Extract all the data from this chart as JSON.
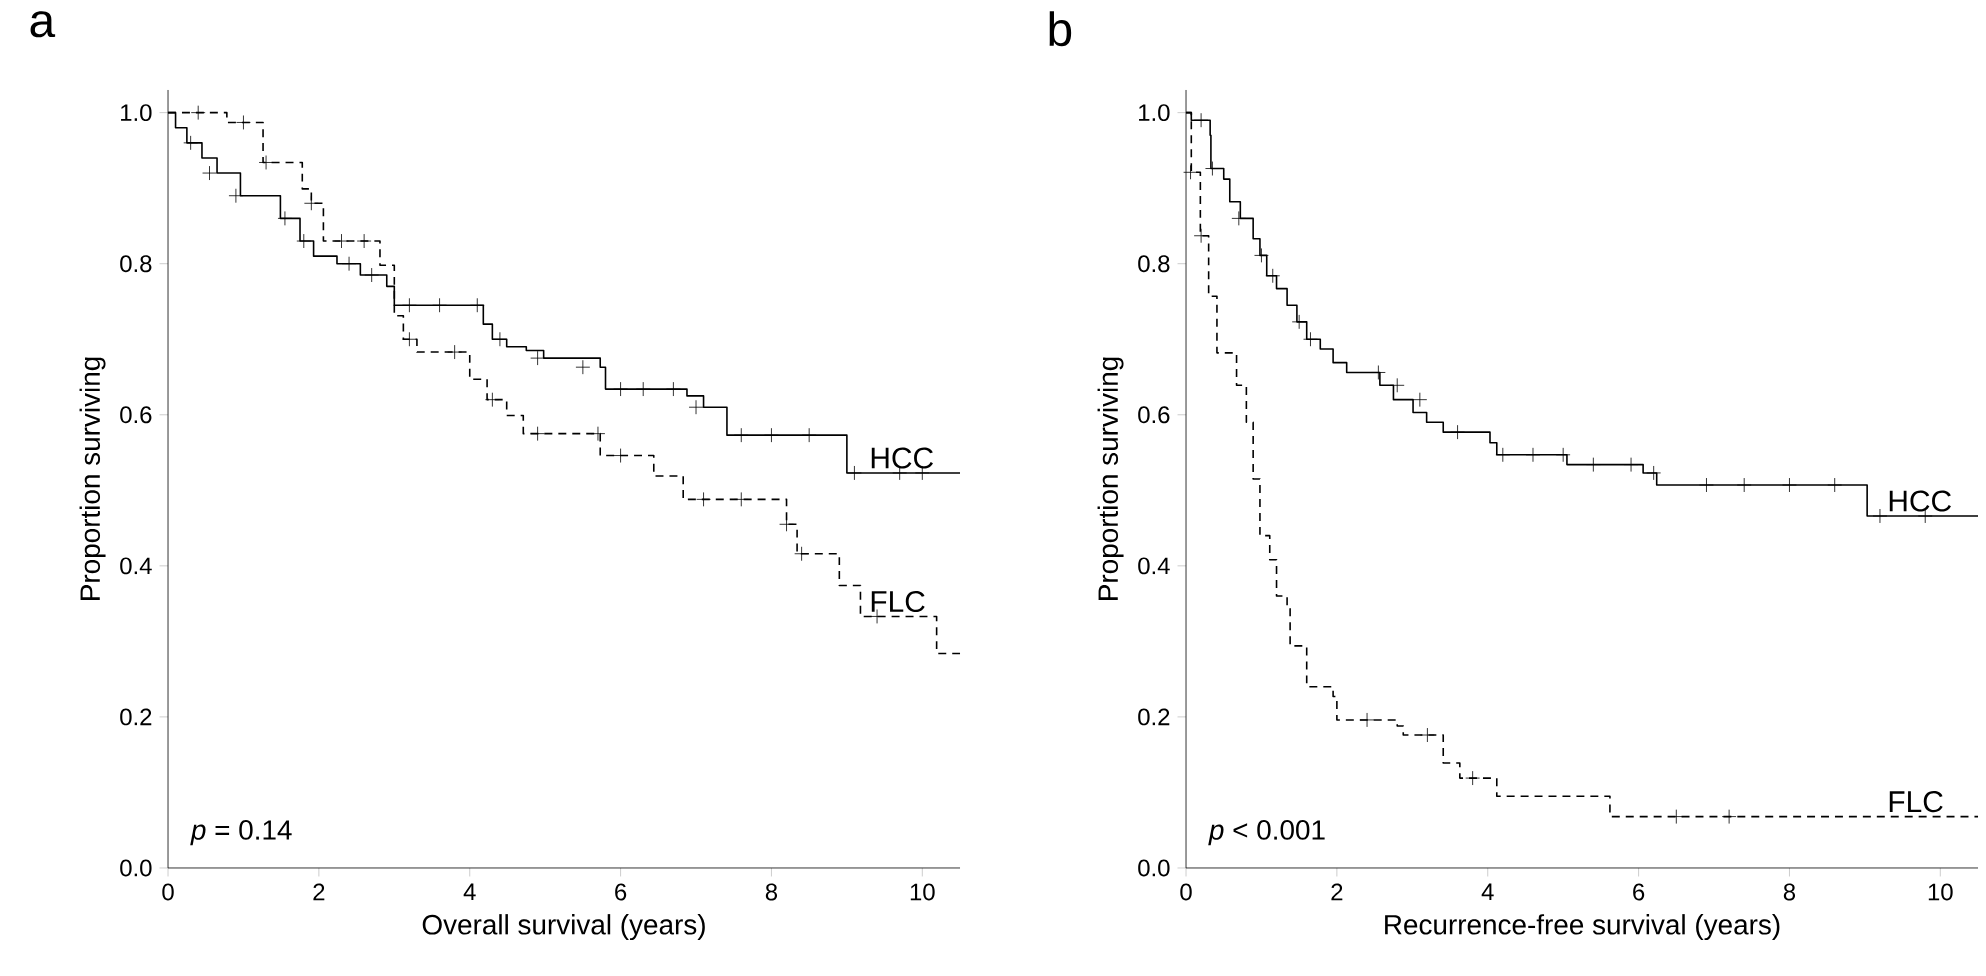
{
  "chart_data": [
    {
      "type": "step",
      "title": "a",
      "xlabel": "Overall survival (years)",
      "ylabel": "Proportion surviving",
      "xlim": [
        0,
        10.5
      ],
      "ylim": [
        0,
        1.03
      ],
      "xticks": [
        0,
        2,
        4,
        6,
        8,
        10
      ],
      "yticks": [
        {
          "value": 0,
          "label": "0.0"
        },
        {
          "value": 0.2,
          "label": "0.2"
        },
        {
          "value": 0.4,
          "label": "0.4"
        },
        {
          "value": 0.6,
          "label": "0.6"
        },
        {
          "value": 0.8,
          "label": "0.8"
        },
        {
          "value": 1.0,
          "label": "1.0"
        }
      ],
      "annotations": [
        "*p* = 0.14"
      ],
      "series": [
        {
          "name": "HCC",
          "color": "#000000",
          "line_style": "solid",
          "x": [
            0,
            0.1,
            0.25,
            0.45,
            0.65,
            0.96,
            1.49,
            1.75,
            1.93,
            2.24,
            2.55,
            2.9,
            3.0,
            4.18,
            4.3,
            4.49,
            4.75,
            4.98,
            5.73,
            5.8,
            6.88,
            7.1,
            7.41,
            9.0,
            10.5
          ],
          "values": [
            1.0,
            0.98,
            0.96,
            0.94,
            0.92,
            0.89,
            0.86,
            0.83,
            0.81,
            0.8,
            0.785,
            0.77,
            0.745,
            0.72,
            0.7,
            0.69,
            0.685,
            0.675,
            0.663,
            0.634,
            0.625,
            0.61,
            0.573,
            0.523,
            0.523
          ]
        },
        {
          "name": "FLC",
          "color": "#000000",
          "line_style": "dashed",
          "x": [
            0,
            0.78,
            1.26,
            1.78,
            1.9,
            2.06,
            2.81,
            3.0,
            3.12,
            3.3,
            4.0,
            4.23,
            4.49,
            4.71,
            5.73,
            6.44,
            6.83,
            8.2,
            8.34,
            8.9,
            9.18,
            10.19,
            10.5
          ],
          "values": [
            1.0,
            0.987,
            0.934,
            0.899,
            0.88,
            0.83,
            0.798,
            0.731,
            0.7,
            0.683,
            0.647,
            0.62,
            0.599,
            0.575,
            0.546,
            0.519,
            0.488,
            0.455,
            0.416,
            0.374,
            0.333,
            0.284,
            0.284
          ]
        },
        {
          "type": "scatter",
          "marker": "cross",
          "color": "#000000",
          "x": [
            0.3,
            0.55,
            0.9,
            1.55,
            1.8,
            2.4,
            2.7,
            3.2,
            3.6,
            4.1,
            4.4,
            4.9,
            5.5,
            6.0,
            6.3,
            6.7,
            7.0,
            7.6,
            8.0,
            8.5,
            9.1,
            9.7,
            10.0
          ],
          "values": [
            0.96,
            0.92,
            0.89,
            0.86,
            0.83,
            0.8,
            0.785,
            0.745,
            0.745,
            0.745,
            0.7,
            0.675,
            0.663,
            0.634,
            0.634,
            0.634,
            0.61,
            0.573,
            0.573,
            0.573,
            0.523,
            0.523,
            0.523
          ]
        },
        {
          "type": "scatter",
          "marker": "cross",
          "color": "#000000",
          "x": [
            0.4,
            1.0,
            1.3,
            1.9,
            2.3,
            2.6,
            3.2,
            3.8,
            4.3,
            4.9,
            5.7,
            6.0,
            7.1,
            7.6,
            8.2,
            8.4,
            9.4
          ],
          "values": [
            1.0,
            0.987,
            0.934,
            0.88,
            0.83,
            0.83,
            0.7,
            0.683,
            0.62,
            0.575,
            0.575,
            0.546,
            0.488,
            0.488,
            0.455,
            0.416,
            0.333
          ]
        }
      ]
    },
    {
      "type": "step",
      "title": "b",
      "xlabel": "Recurrence-free survival (years)",
      "ylabel": "Proportion surviving",
      "xlim": [
        0,
        10.5
      ],
      "ylim": [
        0,
        1.03
      ],
      "xticks": [
        0,
        2,
        4,
        6,
        8,
        10
      ],
      "yticks": [
        {
          "value": 0,
          "label": "0.0"
        },
        {
          "value": 0.2,
          "label": "0.2"
        },
        {
          "value": 0.4,
          "label": "0.4"
        },
        {
          "value": 0.6,
          "label": "0.6"
        },
        {
          "value": 0.8,
          "label": "0.8"
        },
        {
          "value": 1.0,
          "label": "1.0"
        }
      ],
      "annotations": [
        "*p* < 0.001"
      ],
      "series": [
        {
          "name": "HCC",
          "color": "#000000",
          "line_style": "solid",
          "x": [
            0,
            0.07,
            0.32,
            0.33,
            0.5,
            0.58,
            0.72,
            0.89,
            0.98,
            1.07,
            1.2,
            1.34,
            1.47,
            1.6,
            1.78,
            1.95,
            2.13,
            2.57,
            2.75,
            3.01,
            3.19,
            3.41,
            4.03,
            4.12,
            5.05,
            6.06,
            6.24,
            9.03,
            10.5
          ],
          "values": [
            1.0,
            0.99,
            0.97,
            0.926,
            0.912,
            0.882,
            0.86,
            0.833,
            0.811,
            0.784,
            0.767,
            0.745,
            0.723,
            0.7,
            0.687,
            0.669,
            0.656,
            0.639,
            0.62,
            0.603,
            0.59,
            0.577,
            0.563,
            0.547,
            0.534,
            0.523,
            0.507,
            0.466,
            0.466
          ]
        },
        {
          "name": "FLC",
          "color": "#000000",
          "line_style": "dashed",
          "x": [
            0,
            0.07,
            0.19,
            0.3,
            0.41,
            0.67,
            0.8,
            0.89,
            0.98,
            1.11,
            1.2,
            1.34,
            1.38,
            1.6,
            1.95,
            2.0,
            2.8,
            2.88,
            3.41,
            3.63,
            4.12,
            5.62,
            10.5
          ],
          "values": [
            1.0,
            0.921,
            0.837,
            0.757,
            0.682,
            0.639,
            0.59,
            0.515,
            0.44,
            0.408,
            0.36,
            0.343,
            0.294,
            0.24,
            0.227,
            0.196,
            0.188,
            0.176,
            0.139,
            0.119,
            0.095,
            0.068,
            0.068
          ]
        },
        {
          "type": "scatter",
          "marker": "cross",
          "color": "#000000",
          "x": [
            0.2,
            0.35,
            0.7,
            1.0,
            1.15,
            1.5,
            1.65,
            2.55,
            2.8,
            3.1,
            3.6,
            4.2,
            4.6,
            5.0,
            5.4,
            5.9,
            6.2,
            6.9,
            7.4,
            8.0,
            8.6,
            9.2,
            9.8
          ],
          "values": [
            0.99,
            0.926,
            0.86,
            0.811,
            0.784,
            0.723,
            0.7,
            0.656,
            0.639,
            0.62,
            0.577,
            0.547,
            0.547,
            0.547,
            0.534,
            0.534,
            0.523,
            0.507,
            0.507,
            0.507,
            0.507,
            0.466,
            0.466
          ]
        },
        {
          "type": "scatter",
          "marker": "cross",
          "color": "#000000",
          "x": [
            0.06,
            0.2,
            2.4,
            3.2,
            3.8,
            6.5,
            7.2
          ],
          "values": [
            0.921,
            0.837,
            0.196,
            0.176,
            0.119,
            0.068,
            0.068
          ]
        }
      ]
    }
  ]
}
